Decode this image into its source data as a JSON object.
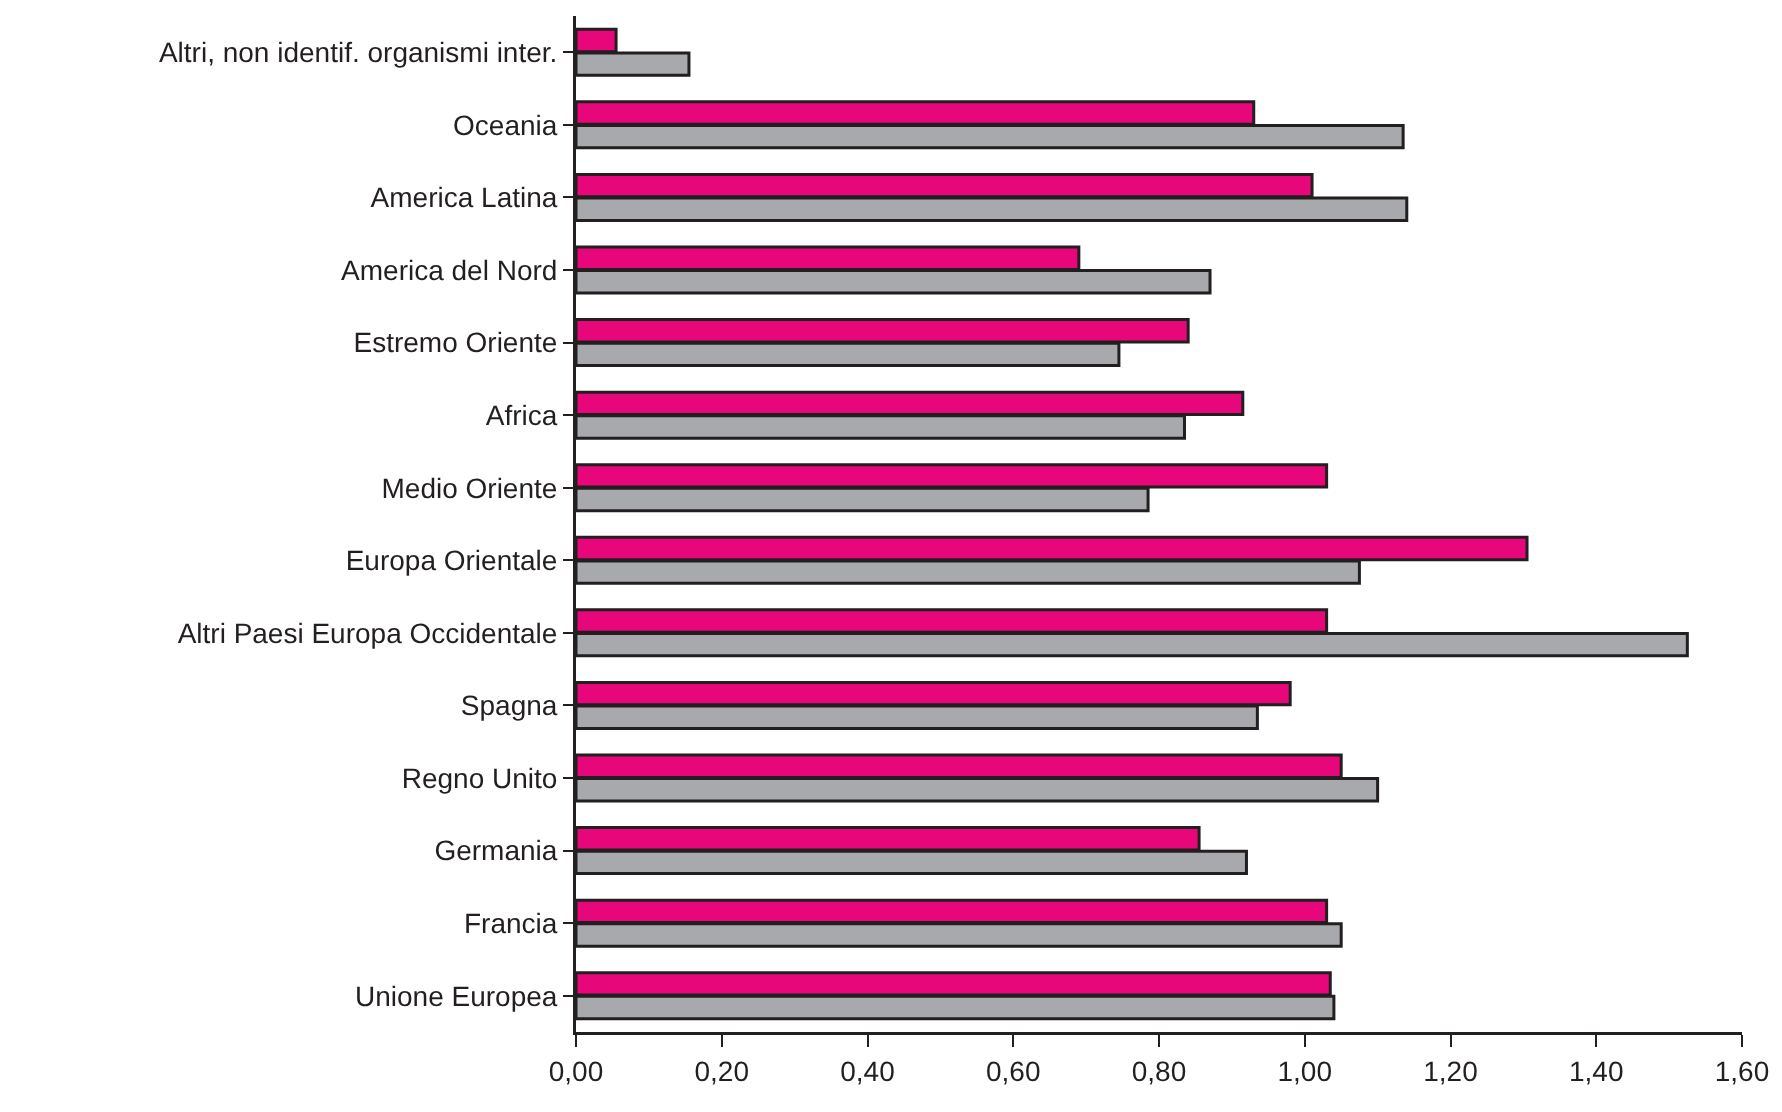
{
  "chart_data": {
    "type": "bar",
    "orientation": "horizontal",
    "categories": [
      "Altri, non identif. organismi inter.",
      "Oceania",
      "America Latina",
      "America del Nord",
      "Estremo Oriente",
      "Africa",
      "Medio Oriente",
      "Europa Orientale",
      "Altri Paesi Europa Occidentale",
      "Spagna",
      "Regno Unito",
      "Germania",
      "Francia",
      "Unione Europea"
    ],
    "series": [
      {
        "color": "#e8077a",
        "values": [
          0.055,
          0.93,
          1.01,
          0.69,
          0.84,
          0.915,
          1.03,
          1.305,
          1.03,
          0.98,
          1.05,
          0.855,
          1.03,
          1.035
        ]
      },
      {
        "color": "#a7a9ac",
        "values": [
          0.155,
          1.135,
          1.14,
          0.87,
          0.745,
          0.835,
          0.785,
          1.075,
          1.525,
          0.935,
          1.1,
          0.92,
          1.05,
          1.04
        ]
      }
    ],
    "xlim": [
      0,
      1.6
    ],
    "xticks": [
      {
        "value": 0,
        "label": "0,00"
      },
      {
        "value": 0.2,
        "label": "0,20"
      },
      {
        "value": 0.4,
        "label": "0,40"
      },
      {
        "value": 0.6,
        "label": "0,60"
      },
      {
        "value": 0.8,
        "label": "0,80"
      },
      {
        "value": 1,
        "label": "1,00"
      },
      {
        "value": 1.2,
        "label": "1,20"
      },
      {
        "value": 1.4,
        "label": "1,40"
      },
      {
        "value": 1.6,
        "label": "1,60"
      }
    ],
    "grid": false
  }
}
